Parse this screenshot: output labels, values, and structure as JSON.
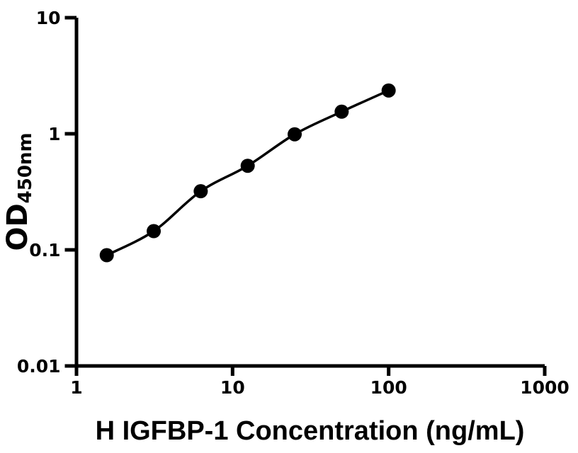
{
  "figure": {
    "background": "#ffffff",
    "axis_color": "#000000"
  },
  "chart_data": {
    "type": "scatter",
    "subtype": "standard-curve-with-connecting-fit-line",
    "title": "",
    "xlabel": "H IGFBP-1 Concentration (ng/mL)",
    "ylabel_main": "OD",
    "ylabel_sub": "450nm",
    "xscale": "log",
    "yscale": "log",
    "xlim": [
      1,
      1000
    ],
    "ylim": [
      0.01,
      10
    ],
    "x": [
      1.5625,
      3.125,
      6.25,
      12.5,
      25,
      50,
      100
    ],
    "y": [
      0.09,
      0.145,
      0.32,
      0.53,
      0.99,
      1.55,
      2.36
    ],
    "x_ticks": {
      "values": [
        1,
        10,
        100,
        1000
      ],
      "labels": [
        "1",
        "10",
        "100",
        "1000"
      ]
    },
    "y_ticks": {
      "values": [
        10,
        1,
        0.1,
        0.01
      ],
      "labels": [
        "10",
        "1",
        "0.1",
        "0.01"
      ]
    },
    "grid": false,
    "legend": "none",
    "marker_color": "#000000",
    "line_color": "#000000"
  }
}
